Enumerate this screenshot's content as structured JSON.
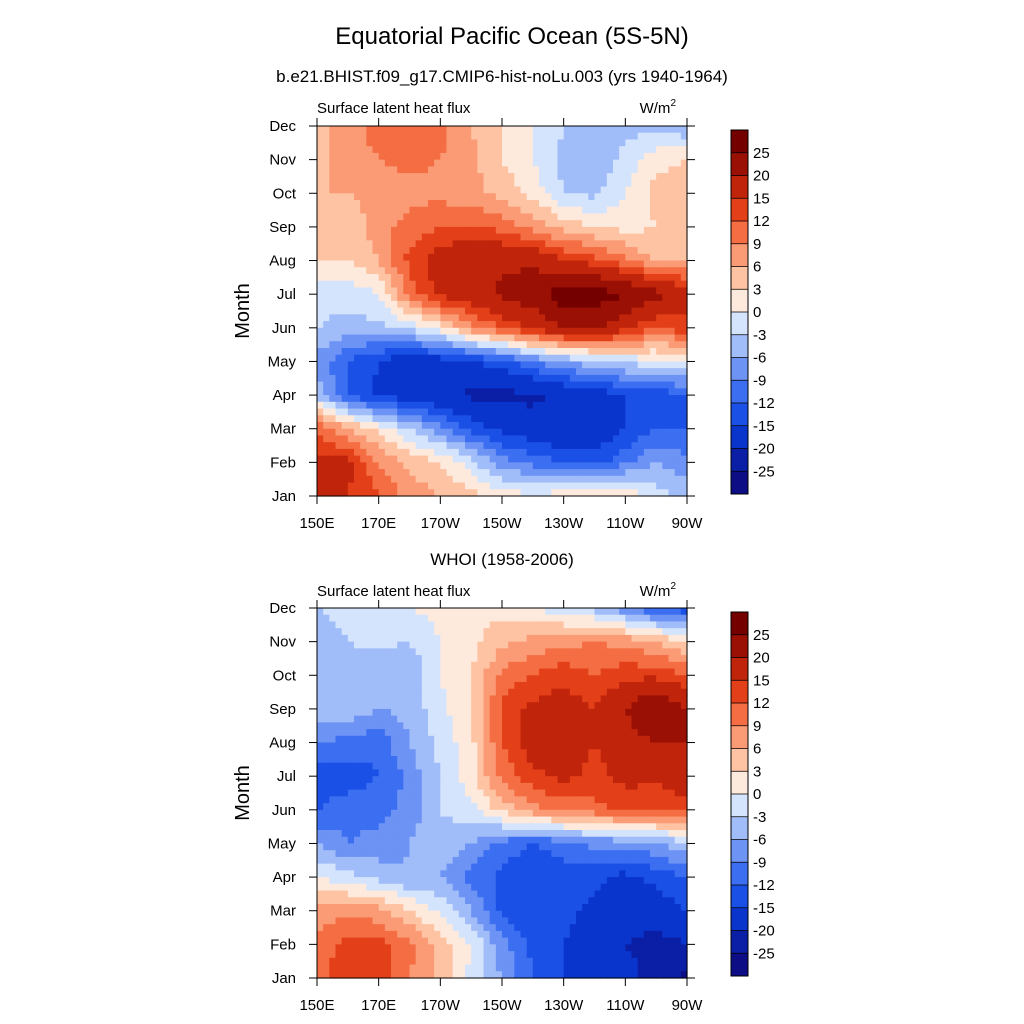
{
  "figure": {
    "title": "Equatorial Pacific Ocean (5S-5N)"
  },
  "chart_data": [
    {
      "type": "heatmap",
      "title": "b.e21.BHIST.f09_g17.CMIP6-hist-noLu.003 (yrs 1940-1964)",
      "left_label": "Surface latent heat flux",
      "right_label": "W/m",
      "right_label_sup": "2",
      "ylabel": "Month",
      "x_ticks": [
        "150E",
        "170E",
        "170W",
        "150W",
        "130W",
        "110W",
        "90W"
      ],
      "x_tick_values": [
        150,
        170,
        190,
        210,
        230,
        250,
        270
      ],
      "y_ticks": [
        "Jan",
        "Feb",
        "Mar",
        "Apr",
        "May",
        "Jun",
        "Jul",
        "Aug",
        "Sep",
        "Oct",
        "Nov",
        "Dec"
      ],
      "xlim": [
        150,
        270
      ],
      "ylim": [
        1,
        12
      ],
      "colorbar_levels": [
        -25,
        -20,
        -15,
        -12,
        -9,
        -6,
        -3,
        0,
        3,
        6,
        9,
        12,
        15,
        20,
        25
      ],
      "lon": [
        150,
        160,
        170,
        180,
        190,
        200,
        210,
        220,
        230,
        240,
        250,
        260,
        270
      ],
      "z": [
        [
          18,
          15,
          12,
          8,
          6,
          4,
          2,
          0,
          2,
          3,
          3,
          -2,
          -4
        ],
        [
          16,
          16,
          9,
          5,
          3,
          -2,
          -8,
          -10,
          -12,
          -13,
          -10,
          -6,
          -8
        ],
        [
          12,
          6,
          2,
          -3,
          -8,
          -13,
          -16,
          -18,
          -19,
          -19,
          -15,
          -12,
          -12
        ],
        [
          -4,
          -12,
          -16,
          -17,
          -19,
          -21,
          -21,
          -21,
          -19,
          -17,
          -15,
          -14,
          -12
        ],
        [
          -7,
          -12,
          -15,
          -18,
          -17,
          -15,
          -13,
          -9,
          -6,
          -4,
          -2,
          -1,
          0
        ],
        [
          -3,
          -4,
          -4,
          -2,
          2,
          8,
          12,
          16,
          20,
          21,
          16,
          12,
          14
        ],
        [
          -2,
          -2,
          0,
          10,
          16,
          18,
          21,
          23,
          28,
          28,
          25,
          22,
          17
        ],
        [
          3,
          3,
          6,
          13,
          17,
          19,
          19,
          19,
          15,
          13,
          10,
          5,
          6
        ],
        [
          3,
          3,
          8,
          10,
          12,
          12,
          11,
          8,
          5,
          3,
          2,
          3,
          6
        ],
        [
          6,
          6,
          7,
          8,
          8,
          7,
          5,
          2,
          -3,
          -4,
          0,
          4,
          5
        ],
        [
          4,
          8,
          9,
          10,
          9,
          7,
          3,
          0,
          -4,
          -5,
          -2,
          2,
          3
        ],
        [
          4,
          8,
          10,
          11,
          10,
          6,
          3,
          0,
          -3,
          -4,
          -4,
          -4,
          -6
        ]
      ]
    },
    {
      "type": "heatmap",
      "title": "WHOI (1958-2006)",
      "left_label": "Surface latent heat flux",
      "right_label": "W/m",
      "right_label_sup": "2",
      "ylabel": "Month",
      "x_ticks": [
        "150E",
        "170E",
        "170W",
        "150W",
        "130W",
        "110W",
        "90W"
      ],
      "x_tick_values": [
        150,
        170,
        190,
        210,
        230,
        250,
        270
      ],
      "y_ticks": [
        "Jan",
        "Feb",
        "Mar",
        "Apr",
        "May",
        "Jun",
        "Jul",
        "Aug",
        "Sep",
        "Oct",
        "Nov",
        "Dec"
      ],
      "xlim": [
        150,
        270
      ],
      "ylim": [
        1,
        12
      ],
      "colorbar_levels": [
        -25,
        -20,
        -15,
        -12,
        -9,
        -6,
        -3,
        0,
        3,
        6,
        9,
        12,
        15,
        20,
        25
      ],
      "lon": [
        150,
        160,
        170,
        180,
        190,
        200,
        210,
        220,
        230,
        240,
        250,
        260,
        270
      ],
      "z": [
        [
          11,
          14,
          15,
          9,
          5,
          -1,
          -6,
          -12,
          -15,
          -15,
          -18,
          -22,
          -26
        ],
        [
          10,
          13,
          13,
          10,
          5,
          0,
          -8,
          -13,
          -15,
          -17,
          -20,
          -22,
          -20
        ],
        [
          7,
          8,
          7,
          3,
          -1,
          -6,
          -13,
          -15,
          -14,
          -16,
          -17,
          -17,
          -15
        ],
        [
          0,
          -2,
          -4,
          -6,
          -6,
          -10,
          -13,
          -15,
          -14,
          -14,
          -16,
          -14,
          -12
        ],
        [
          -6,
          -9,
          -8,
          -6,
          -4,
          -6,
          -10,
          -12,
          -10,
          -8,
          -8,
          -6,
          -4
        ],
        [
          -12,
          -10,
          -10,
          -8,
          -3,
          -1,
          4,
          8,
          10,
          11,
          13,
          12,
          14
        ],
        [
          -14,
          -14,
          -12,
          -8,
          -3,
          2,
          10,
          14,
          16,
          14,
          16,
          16,
          17
        ],
        [
          -9,
          -10,
          -11,
          -6,
          -2,
          2,
          12,
          17,
          17,
          15,
          18,
          20,
          20
        ],
        [
          -3,
          -4,
          -6,
          -5,
          -1,
          3,
          13,
          16,
          17,
          15,
          20,
          26,
          20
        ],
        [
          -5,
          -4,
          -6,
          -6,
          0,
          3,
          10,
          12,
          14,
          12,
          14,
          14,
          12
        ],
        [
          -6,
          -3,
          -2,
          -3,
          0,
          2,
          5,
          7,
          8,
          9,
          8,
          6,
          3
        ],
        [
          -3,
          -1,
          0,
          0,
          1,
          2,
          2,
          0,
          -2,
          -4,
          -8,
          -12,
          -14
        ]
      ]
    }
  ]
}
